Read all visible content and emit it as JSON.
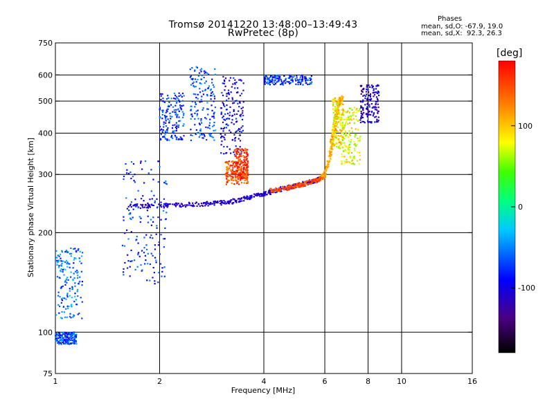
{
  "chart_data": {
    "type": "scatter",
    "title": "Tromsø 20141220 13:48:00–13:49:43",
    "subtitle": "RwPretec (8p)",
    "xlabel": "Frequency [MHz]",
    "ylabel": "Stationary phase Virtual Height [km]",
    "x_scale": "log",
    "y_scale": "log",
    "xlim": [
      1,
      16
    ],
    "ylim": [
      75,
      750
    ],
    "x_ticks": [
      "1",
      "2",
      "4",
      "6",
      "8",
      "10",
      "16"
    ],
    "x_tick_values": [
      1,
      2,
      4,
      6,
      8,
      10,
      16
    ],
    "y_ticks": [
      "75",
      "100",
      "200",
      "300",
      "400",
      "500",
      "600",
      "750"
    ],
    "y_tick_values": [
      75,
      100,
      200,
      300,
      400,
      500,
      600,
      750
    ],
    "grid": true,
    "colorbar": {
      "label": "[deg]",
      "ticks": [
        "100",
        "0",
        "-100"
      ],
      "tick_values": [
        100,
        0,
        -100
      ],
      "range": [
        -180,
        180
      ]
    },
    "stats": {
      "heading": "Phases",
      "o_line": "mean, sd,O: -67.9, 19.0",
      "x_line": "mean, sd,X:  92.3, 26.3"
    },
    "traces": [
      {
        "name_hint": "low_F_trace",
        "pts": [
          [
            1.6,
            240
          ],
          [
            2.0,
            242
          ],
          [
            2.4,
            243
          ],
          [
            2.8,
            245
          ],
          [
            3.2,
            248
          ],
          [
            3.6,
            255
          ],
          [
            4.0,
            262
          ],
          [
            4.4,
            270
          ],
          [
            5.0,
            278
          ],
          [
            5.5,
            285
          ],
          [
            5.8,
            290
          ]
        ],
        "phase": -110
      },
      {
        "name_hint": "o_cusp",
        "pts": [
          [
            5.8,
            290
          ],
          [
            6.0,
            300
          ],
          [
            6.2,
            340
          ],
          [
            6.3,
            380
          ],
          [
            6.4,
            420
          ],
          [
            6.5,
            460
          ],
          [
            6.6,
            500
          ],
          [
            6.7,
            510
          ]
        ],
        "phase": 110
      },
      {
        "name_hint": "x_trace",
        "pts": [
          [
            4.2,
            268
          ],
          [
            4.6,
            272
          ],
          [
            5.0,
            278
          ],
          [
            5.5,
            285
          ],
          [
            5.9,
            293
          ]
        ],
        "phase": 150
      }
    ]
  }
}
